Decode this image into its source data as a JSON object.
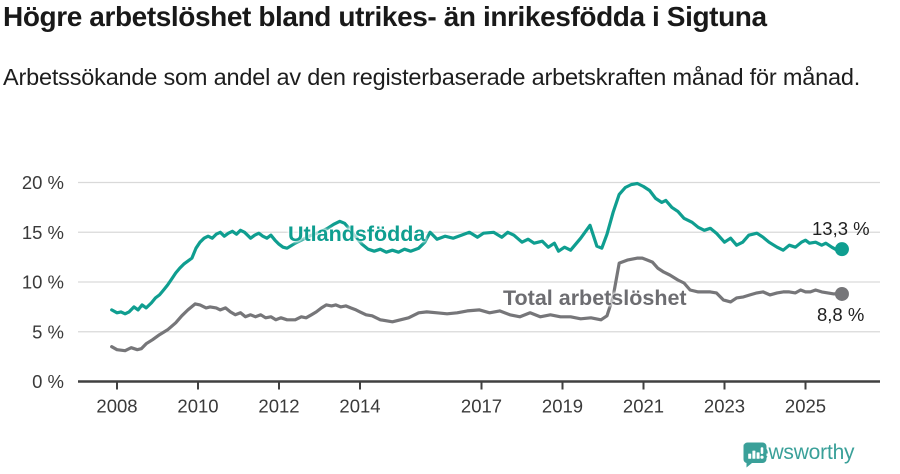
{
  "header": {
    "title": "Högre arbetslöshet bland utrikes- än inrikesfödda i Sigtuna",
    "subtitle": "Arbetssökande som andel av den registerbaserade arbetskraften månad för månad."
  },
  "footer": {
    "brand": "Newsworthy",
    "brand_color": "#3aa099"
  },
  "chart_data": {
    "type": "line",
    "title": "Högre arbetslöshet bland utrikes- än inrikesfödda i Sigtuna",
    "subtitle": "Arbetssökande som andel av den registerbaserade arbetskraften månad för månad.",
    "unit": "%",
    "grid": true,
    "legend_position": "inline-on-lines",
    "x_range": [
      2007.87,
      2025.9
    ],
    "ylim": [
      0,
      20
    ],
    "style": {
      "grid_color": "#d9d9d9",
      "axis_color": "#404040",
      "tick_text_color": "#3a3a3a"
    },
    "y_axis": {
      "ticks": [
        {
          "value": 0,
          "label": "0 %"
        },
        {
          "value": 5,
          "label": "5 %"
        },
        {
          "value": 10,
          "label": "10 %"
        },
        {
          "value": 15,
          "label": "15 %"
        },
        {
          "value": 20,
          "label": "20 %"
        }
      ]
    },
    "x_axis": {
      "ticks": [
        {
          "value": 2008,
          "label": "2008"
        },
        {
          "value": 2010,
          "label": "2010"
        },
        {
          "value": 2012,
          "label": "2012"
        },
        {
          "value": 2014,
          "label": "2014"
        },
        {
          "value": 2017,
          "label": "2017"
        },
        {
          "value": 2019,
          "label": "2019"
        },
        {
          "value": 2021,
          "label": "2021"
        },
        {
          "value": 2023,
          "label": "2023"
        },
        {
          "value": 2025,
          "label": "2025"
        }
      ]
    },
    "series": [
      {
        "id": "utlandsfodda",
        "label": "Utlandsfödda",
        "color": "#0f9e90",
        "end_label": "13,3 %",
        "end_value": 13.3,
        "points": [
          [
            2007.87,
            7.2
          ],
          [
            2008.0,
            6.9
          ],
          [
            2008.1,
            7.0
          ],
          [
            2008.2,
            6.8
          ],
          [
            2008.3,
            7.0
          ],
          [
            2008.42,
            7.5
          ],
          [
            2008.52,
            7.2
          ],
          [
            2008.62,
            7.7
          ],
          [
            2008.72,
            7.4
          ],
          [
            2008.85,
            7.9
          ],
          [
            2008.95,
            8.4
          ],
          [
            2009.05,
            8.7
          ],
          [
            2009.15,
            9.2
          ],
          [
            2009.25,
            9.7
          ],
          [
            2009.35,
            10.3
          ],
          [
            2009.45,
            10.9
          ],
          [
            2009.55,
            11.4
          ],
          [
            2009.65,
            11.8
          ],
          [
            2009.75,
            12.1
          ],
          [
            2009.85,
            12.4
          ],
          [
            2009.95,
            13.4
          ],
          [
            2010.05,
            14.0
          ],
          [
            2010.15,
            14.4
          ],
          [
            2010.25,
            14.6
          ],
          [
            2010.35,
            14.4
          ],
          [
            2010.45,
            14.8
          ],
          [
            2010.55,
            15.0
          ],
          [
            2010.65,
            14.6
          ],
          [
            2010.75,
            14.9
          ],
          [
            2010.85,
            15.1
          ],
          [
            2010.95,
            14.8
          ],
          [
            2011.05,
            15.2
          ],
          [
            2011.15,
            15.0
          ],
          [
            2011.3,
            14.4
          ],
          [
            2011.4,
            14.7
          ],
          [
            2011.5,
            14.9
          ],
          [
            2011.6,
            14.6
          ],
          [
            2011.7,
            14.4
          ],
          [
            2011.8,
            14.7
          ],
          [
            2011.9,
            14.2
          ],
          [
            2012.0,
            13.8
          ],
          [
            2012.1,
            13.5
          ],
          [
            2012.2,
            13.4
          ],
          [
            2012.4,
            13.9
          ],
          [
            2012.6,
            14.3
          ],
          [
            2012.8,
            14.7
          ],
          [
            2013.0,
            15.0
          ],
          [
            2013.2,
            15.4
          ],
          [
            2013.35,
            15.8
          ],
          [
            2013.5,
            16.1
          ],
          [
            2013.62,
            15.9
          ],
          [
            2013.75,
            15.3
          ],
          [
            2013.9,
            14.5
          ],
          [
            2014.05,
            13.8
          ],
          [
            2014.2,
            13.3
          ],
          [
            2014.35,
            13.1
          ],
          [
            2014.5,
            13.3
          ],
          [
            2014.65,
            13.0
          ],
          [
            2014.8,
            13.2
          ],
          [
            2014.95,
            13.0
          ],
          [
            2015.1,
            13.3
          ],
          [
            2015.25,
            13.1
          ],
          [
            2015.45,
            13.4
          ],
          [
            2015.6,
            14.0
          ],
          [
            2015.73,
            15.0
          ],
          [
            2015.9,
            14.3
          ],
          [
            2016.1,
            14.6
          ],
          [
            2016.3,
            14.4
          ],
          [
            2016.5,
            14.7
          ],
          [
            2016.7,
            15.0
          ],
          [
            2016.9,
            14.5
          ],
          [
            2017.05,
            14.9
          ],
          [
            2017.3,
            15.0
          ],
          [
            2017.5,
            14.5
          ],
          [
            2017.65,
            15.0
          ],
          [
            2017.8,
            14.7
          ],
          [
            2018.0,
            14.0
          ],
          [
            2018.15,
            14.3
          ],
          [
            2018.3,
            13.9
          ],
          [
            2018.5,
            14.1
          ],
          [
            2018.65,
            13.5
          ],
          [
            2018.8,
            13.9
          ],
          [
            2018.9,
            13.1
          ],
          [
            2019.05,
            13.5
          ],
          [
            2019.2,
            13.2
          ],
          [
            2019.45,
            14.4
          ],
          [
            2019.68,
            15.7
          ],
          [
            2019.85,
            13.6
          ],
          [
            2019.97,
            13.4
          ],
          [
            2020.1,
            14.8
          ],
          [
            2020.25,
            17.0
          ],
          [
            2020.4,
            18.8
          ],
          [
            2020.55,
            19.5
          ],
          [
            2020.7,
            19.8
          ],
          [
            2020.85,
            19.9
          ],
          [
            2021.0,
            19.6
          ],
          [
            2021.15,
            19.2
          ],
          [
            2021.3,
            18.4
          ],
          [
            2021.45,
            18.0
          ],
          [
            2021.55,
            18.2
          ],
          [
            2021.7,
            17.5
          ],
          [
            2021.85,
            17.1
          ],
          [
            2022.0,
            16.4
          ],
          [
            2022.2,
            16.0
          ],
          [
            2022.35,
            15.5
          ],
          [
            2022.5,
            15.2
          ],
          [
            2022.65,
            15.4
          ],
          [
            2022.8,
            14.9
          ],
          [
            2023.0,
            14.0
          ],
          [
            2023.15,
            14.4
          ],
          [
            2023.3,
            13.7
          ],
          [
            2023.45,
            14.0
          ],
          [
            2023.6,
            14.7
          ],
          [
            2023.8,
            14.9
          ],
          [
            2023.95,
            14.5
          ],
          [
            2024.1,
            14.0
          ],
          [
            2024.3,
            13.5
          ],
          [
            2024.45,
            13.2
          ],
          [
            2024.6,
            13.7
          ],
          [
            2024.75,
            13.5
          ],
          [
            2024.9,
            14.0
          ],
          [
            2025.0,
            14.2
          ],
          [
            2025.1,
            13.9
          ],
          [
            2025.25,
            14.0
          ],
          [
            2025.4,
            13.7
          ],
          [
            2025.5,
            13.9
          ],
          [
            2025.65,
            13.5
          ],
          [
            2025.78,
            13.2
          ],
          [
            2025.9,
            13.3
          ]
        ]
      },
      {
        "id": "total",
        "label": "Total arbetslöshet",
        "color": "#767679",
        "end_label": "8,8 %",
        "end_value": 8.8,
        "points": [
          [
            2007.87,
            3.5
          ],
          [
            2008.0,
            3.2
          ],
          [
            2008.2,
            3.1
          ],
          [
            2008.35,
            3.4
          ],
          [
            2008.5,
            3.2
          ],
          [
            2008.6,
            3.3
          ],
          [
            2008.72,
            3.8
          ],
          [
            2008.88,
            4.2
          ],
          [
            2009.05,
            4.7
          ],
          [
            2009.25,
            5.2
          ],
          [
            2009.45,
            5.9
          ],
          [
            2009.6,
            6.6
          ],
          [
            2009.75,
            7.2
          ],
          [
            2009.93,
            7.8
          ],
          [
            2010.05,
            7.7
          ],
          [
            2010.2,
            7.4
          ],
          [
            2010.3,
            7.5
          ],
          [
            2010.45,
            7.4
          ],
          [
            2010.55,
            7.2
          ],
          [
            2010.68,
            7.4
          ],
          [
            2010.8,
            7.0
          ],
          [
            2010.92,
            6.7
          ],
          [
            2011.05,
            6.9
          ],
          [
            2011.17,
            6.5
          ],
          [
            2011.3,
            6.7
          ],
          [
            2011.42,
            6.5
          ],
          [
            2011.55,
            6.7
          ],
          [
            2011.67,
            6.4
          ],
          [
            2011.8,
            6.5
          ],
          [
            2011.92,
            6.2
          ],
          [
            2012.05,
            6.4
          ],
          [
            2012.2,
            6.2
          ],
          [
            2012.4,
            6.2
          ],
          [
            2012.55,
            6.5
          ],
          [
            2012.67,
            6.4
          ],
          [
            2012.8,
            6.7
          ],
          [
            2012.92,
            7.0
          ],
          [
            2013.05,
            7.4
          ],
          [
            2013.17,
            7.7
          ],
          [
            2013.3,
            7.6
          ],
          [
            2013.4,
            7.7
          ],
          [
            2013.52,
            7.5
          ],
          [
            2013.65,
            7.6
          ],
          [
            2013.77,
            7.4
          ],
          [
            2013.9,
            7.2
          ],
          [
            2014.0,
            7.0
          ],
          [
            2014.15,
            6.7
          ],
          [
            2014.3,
            6.6
          ],
          [
            2014.5,
            6.2
          ],
          [
            2014.8,
            6.0
          ],
          [
            2015.0,
            6.2
          ],
          [
            2015.2,
            6.4
          ],
          [
            2015.45,
            6.9
          ],
          [
            2015.65,
            7.0
          ],
          [
            2015.9,
            6.9
          ],
          [
            2016.15,
            6.8
          ],
          [
            2016.4,
            6.9
          ],
          [
            2016.65,
            7.1
          ],
          [
            2016.95,
            7.2
          ],
          [
            2017.2,
            6.9
          ],
          [
            2017.45,
            7.1
          ],
          [
            2017.7,
            6.7
          ],
          [
            2017.95,
            6.5
          ],
          [
            2018.2,
            6.9
          ],
          [
            2018.45,
            6.5
          ],
          [
            2018.7,
            6.7
          ],
          [
            2018.95,
            6.5
          ],
          [
            2019.2,
            6.5
          ],
          [
            2019.45,
            6.3
          ],
          [
            2019.7,
            6.4
          ],
          [
            2019.95,
            6.2
          ],
          [
            2020.1,
            6.6
          ],
          [
            2020.25,
            8.5
          ],
          [
            2020.4,
            11.9
          ],
          [
            2020.6,
            12.2
          ],
          [
            2020.85,
            12.4
          ],
          [
            2020.97,
            12.4
          ],
          [
            2021.1,
            12.2
          ],
          [
            2021.22,
            12.0
          ],
          [
            2021.35,
            11.4
          ],
          [
            2021.5,
            11.0
          ],
          [
            2021.65,
            10.7
          ],
          [
            2021.85,
            10.2
          ],
          [
            2022.0,
            9.9
          ],
          [
            2022.15,
            9.2
          ],
          [
            2022.35,
            9.0
          ],
          [
            2022.5,
            9.0
          ],
          [
            2022.65,
            9.0
          ],
          [
            2022.8,
            8.9
          ],
          [
            2022.97,
            8.2
          ],
          [
            2023.15,
            8.0
          ],
          [
            2023.3,
            8.4
          ],
          [
            2023.47,
            8.5
          ],
          [
            2023.63,
            8.7
          ],
          [
            2023.8,
            8.9
          ],
          [
            2023.95,
            9.0
          ],
          [
            2024.12,
            8.7
          ],
          [
            2024.3,
            8.9
          ],
          [
            2024.45,
            9.0
          ],
          [
            2024.6,
            9.0
          ],
          [
            2024.75,
            8.9
          ],
          [
            2024.88,
            9.2
          ],
          [
            2025.0,
            9.0
          ],
          [
            2025.12,
            9.0
          ],
          [
            2025.25,
            9.2
          ],
          [
            2025.4,
            9.0
          ],
          [
            2025.55,
            8.9
          ],
          [
            2025.7,
            8.8
          ],
          [
            2025.9,
            8.8
          ]
        ]
      }
    ]
  }
}
